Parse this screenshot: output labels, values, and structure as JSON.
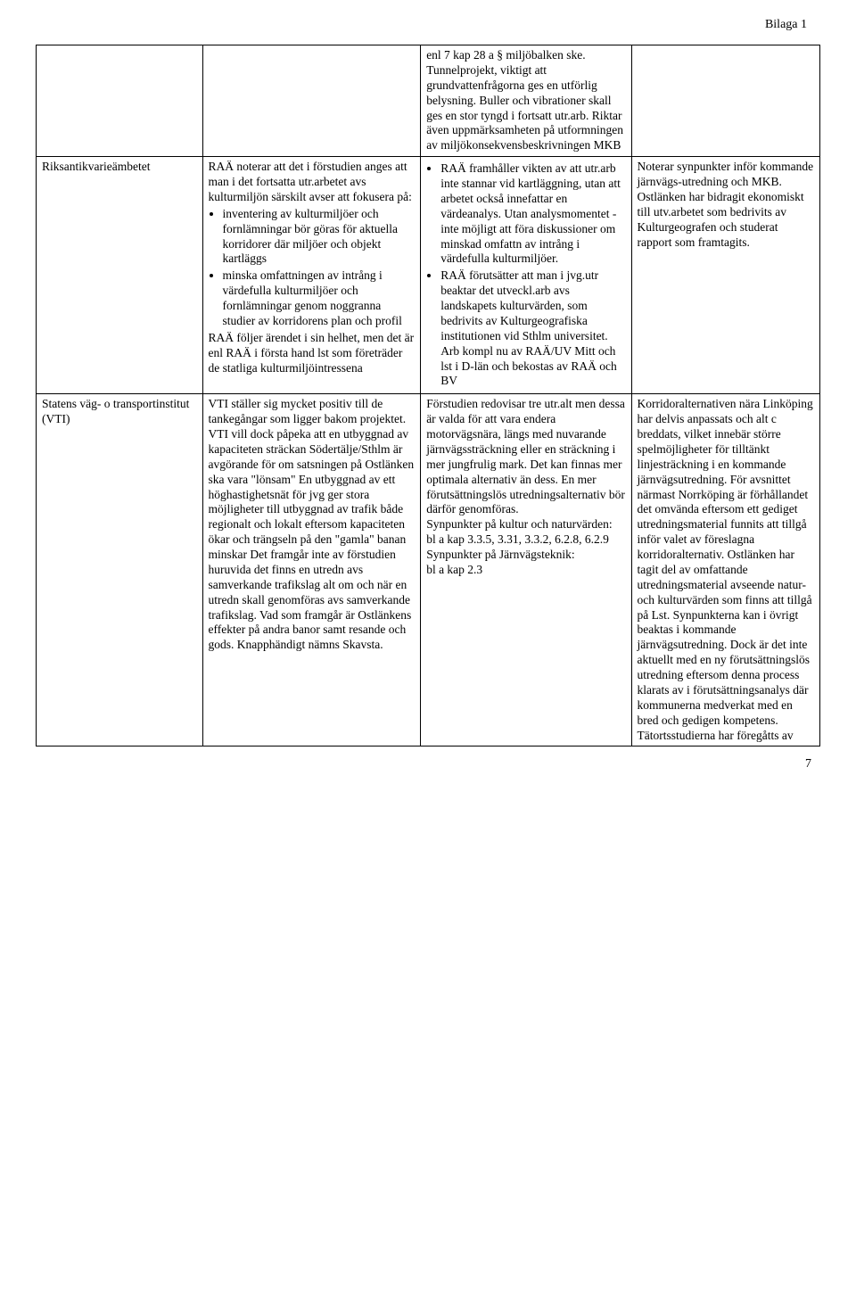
{
  "header": {
    "appendix": "Bilaga 1"
  },
  "row0": {
    "col3": "enl 7 kap 28 a § miljöbalken ske.\nTunnelprojekt, viktigt att grundvattenfrågorna ges en utförlig belysning. Buller och vibrationer skall ges en stor tyngd i fortsatt utr.arb. Riktar även uppmärksamheten på utformningen av miljökonsekvensbeskrivningen MKB"
  },
  "row1": {
    "col1": "Riksantikvarieämbetet",
    "col2_intro": "RAÄ noterar att det i förstudien anges att man i det fortsatta utr.arbetet avs kulturmiljön särskilt avser att fokusera på:",
    "col2_b1": "inventering av kulturmiljöer och fornlämningar bör göras för aktuella korridorer där miljöer och objekt kartläggs",
    "col2_b2": "minska omfattningen av intrång i värdefulla kulturmiljöer och fornlämningar genom noggranna studier av korridorens plan och profil",
    "col2_outro": "RAÄ följer ärendet i sin helhet, men det är enl RAÄ i första hand lst som företräder de statliga kulturmiljöintressena",
    "col3_b1": "RAÄ framhåller vikten av att utr.arb inte stannar vid kartläggning, utan att arbetet också innefattar en värdeanalys. Utan analysmomentet - inte möjligt att föra diskussioner om minskad omfattn av intrång i värdefulla kulturmiljöer.",
    "col3_b2": "RAÄ förutsätter att man i jvg.utr beaktar det utveckl.arb avs landskapets kulturvärden, som bedrivits av Kulturgeografiska institutionen vid Sthlm universitet. Arb kompl nu av RAÄ/UV Mitt och lst i D-län och bekostas av RAÄ och BV",
    "col4": "Noterar synpunkter inför kommande järnvägs-utredning och MKB. Ostlänken har bidragit ekonomiskt till utv.arbetet som bedrivits av Kulturgeografen och studerat rapport som framtagits."
  },
  "row2": {
    "col1": "Statens väg- o transportinstitut (VTI)",
    "col2": "VTI ställer sig mycket positiv till de tankegångar som ligger bakom projektet. VTI vill dock påpeka att en utbyggnad av kapaciteten sträckan Södertälje/Sthlm är avgörande för om satsningen på Ostlänken ska vara \"lönsam\" En utbyggnad av ett höghastighetsnät för jvg ger stora möjligheter till utbyggnad av trafik både regionalt och lokalt eftersom kapaciteten ökar och trängseln på den \"gamla\" banan minskar Det framgår inte av förstudien huruvida det finns en utredn avs samverkande trafikslag alt om och när en utredn skall genomföras avs samverkande trafikslag. Vad som framgår är Ostlänkens effekter på andra banor samt resande och gods. Knapphändigt nämns Skavsta.",
    "col3": "Förstudien redovisar tre utr.alt men dessa är valda för att vara endera motorvägsnära, längs med nuvarande järnvägssträckning eller en sträckning i mer jungfrulig mark. Det kan finnas mer optimala alternativ än dess. En mer förutsättningslös utredningsalternativ bör därför genomföras.\nSynpunkter på kultur och naturvärden:\nbl a kap 3.3.5, 3.31, 3.3.2, 6.2.8, 6.2.9\nSynpunkter på Järnvägsteknik:\nbl a kap 2.3",
    "col4": "Korridoralternativen nära Linköping har delvis anpassats och alt c breddats, vilket innebär större spelmöjligheter för tilltänkt linjesträckning i en kommande järnvägsutredning. För avsnittet närmast Norrköping är förhållandet det omvända eftersom ett gediget utredningsmaterial funnits att tillgå inför valet av föreslagna korridoralternativ. Ostlänken har tagit del av omfattande utredningsmaterial avseende natur- och kulturvärden som finns att tillgå på Lst. Synpunkterna kan i övrigt beaktas i kommande järnvägsutredning. Dock är det inte aktuellt med en ny förutsättningslös utredning eftersom denna process klarats av i förutsättningsanalys där kommunerna medverkat med en bred och gedigen kompetens. Tätortsstudierna har föregåtts av"
  },
  "footer": {
    "page": "7"
  }
}
